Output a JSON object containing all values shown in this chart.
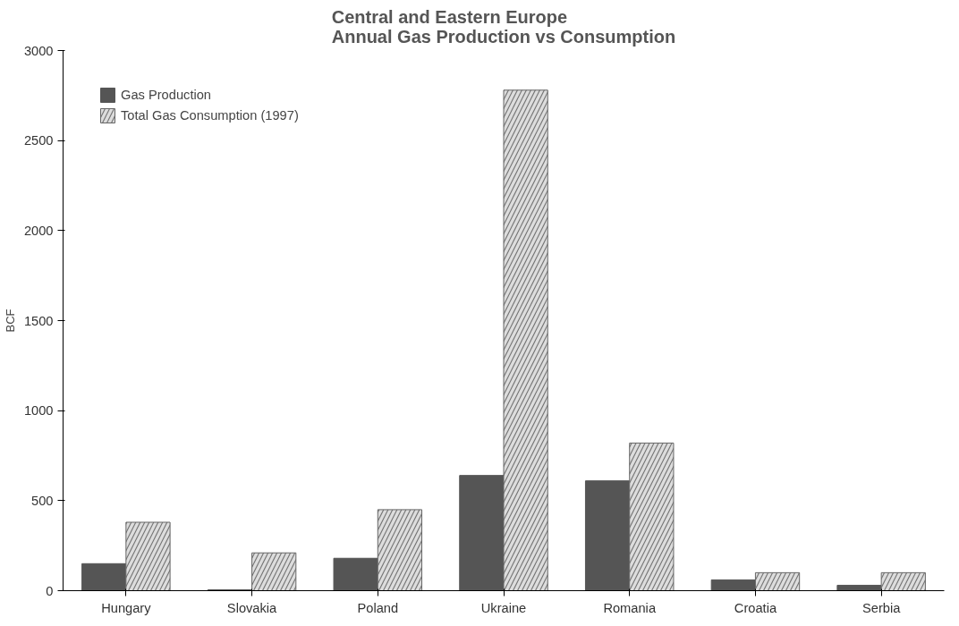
{
  "chart_data": {
    "type": "bar",
    "title": "Central and Eastern Europe\nAnnual Gas Production vs Consumption",
    "ylabel": "BCF",
    "categories": [
      "Hungary",
      "Slovakia",
      "Poland",
      "Ukraine",
      "Romania",
      "Croatia",
      "Serbia"
    ],
    "series": [
      {
        "name": "Gas Production",
        "color": "#555555",
        "values": [
          150,
          5,
          180,
          640,
          610,
          60,
          30
        ]
      },
      {
        "name": "Total Gas Consumption (1997)",
        "color": "#dddddd",
        "values": [
          380,
          210,
          450,
          2780,
          820,
          100,
          100
        ]
      }
    ],
    "ylim": [
      0,
      3000
    ],
    "yticks": [
      0,
      500,
      1000,
      1500,
      2000,
      2500,
      3000
    ],
    "grid": false,
    "legend": "top left"
  }
}
